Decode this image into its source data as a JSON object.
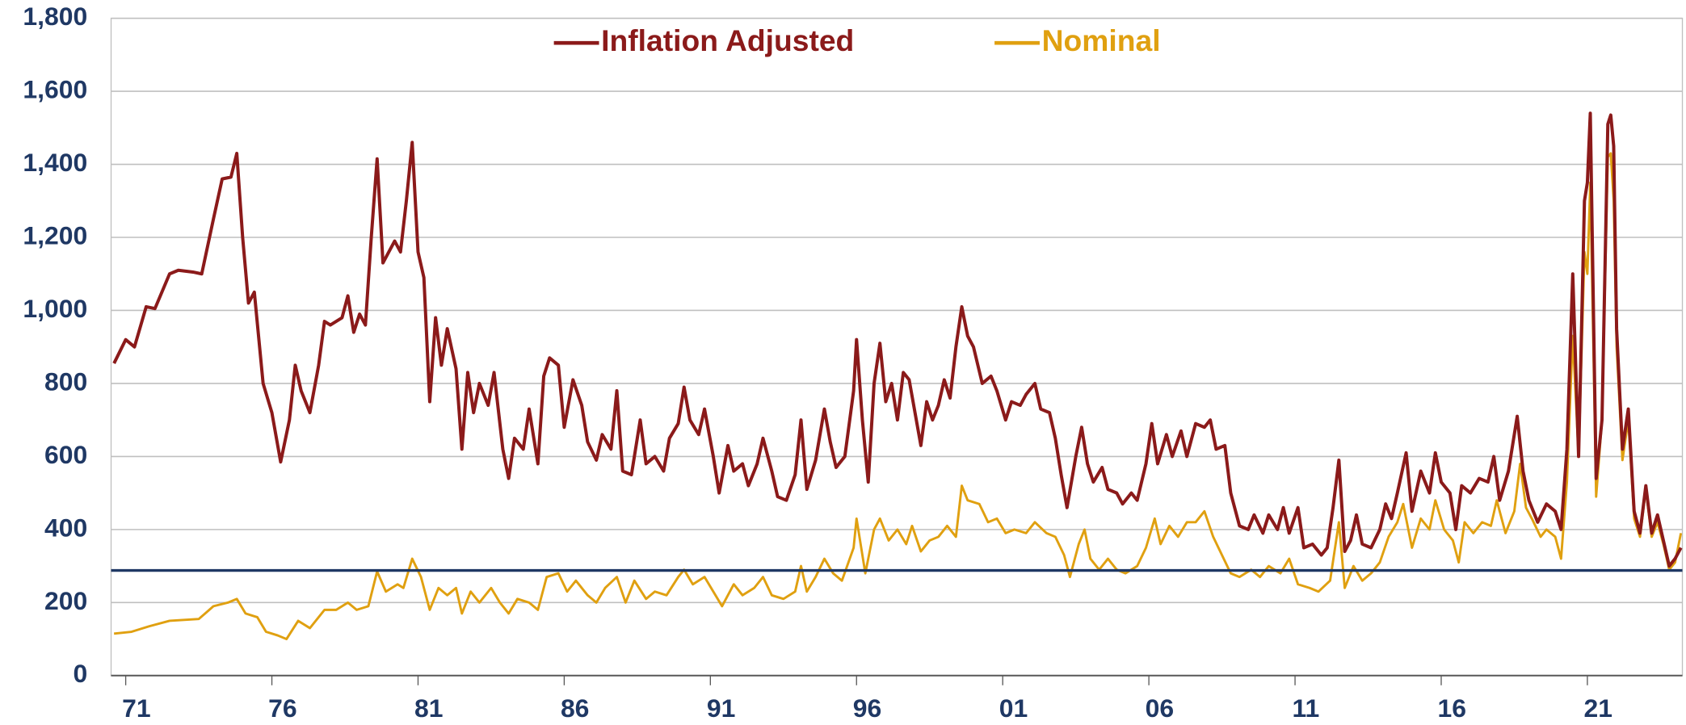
{
  "chart_data": {
    "type": "line",
    "xlim": [
      1970.5,
      2024.25
    ],
    "xticks": [
      {
        "value": 1971,
        "label": "71"
      },
      {
        "value": 1976,
        "label": "76"
      },
      {
        "value": 1981,
        "label": "81"
      },
      {
        "value": 1986,
        "label": "86"
      },
      {
        "value": 1991,
        "label": "91"
      },
      {
        "value": 1996,
        "label": "96"
      },
      {
        "value": 2001,
        "label": "01"
      },
      {
        "value": 2006,
        "label": "06"
      },
      {
        "value": 2011,
        "label": "11"
      },
      {
        "value": 2016,
        "label": "16"
      },
      {
        "value": 2021,
        "label": "21"
      }
    ],
    "ylim": [
      0,
      1800
    ],
    "yticks": [
      0,
      200,
      400,
      600,
      800,
      {
        "value": 1000,
        "label": "1,000"
      },
      {
        "value": 1200,
        "label": "1,200"
      },
      {
        "value": 1400,
        "label": "1,400"
      },
      {
        "value": 1600,
        "label": "1,600"
      },
      {
        "value": 1800,
        "label": "1,800"
      }
    ],
    "grid": true,
    "legend": "top",
    "reference_line": {
      "value": 288,
      "color": "#1f3864"
    },
    "series": [
      {
        "name": "Inflation Adjusted",
        "color": "#8b1a1a",
        "x": [
          1970.6,
          1971.0,
          1971.3,
          1971.7,
          1972.0,
          1972.5,
          1972.8,
          1973.3,
          1973.6,
          1974.0,
          1974.3,
          1974.6,
          1974.8,
          1975.0,
          1975.2,
          1975.4,
          1975.7,
          1976.0,
          1976.3,
          1976.6,
          1976.8,
          1977.0,
          1977.3,
          1977.6,
          1977.8,
          1978.0,
          1978.4,
          1978.6,
          1978.8,
          1979.0,
          1979.2,
          1979.4,
          1979.6,
          1979.8,
          1980.0,
          1980.2,
          1980.4,
          1980.6,
          1980.8,
          1981.0,
          1981.2,
          1981.4,
          1981.6,
          1981.8,
          1982.0,
          1982.3,
          1982.5,
          1982.7,
          1982.9,
          1983.1,
          1983.4,
          1983.6,
          1983.9,
          1984.1,
          1984.3,
          1984.6,
          1984.8,
          1985.1,
          1985.3,
          1985.5,
          1985.8,
          1986.0,
          1986.3,
          1986.6,
          1986.8,
          1987.1,
          1987.3,
          1987.6,
          1987.8,
          1988.0,
          1988.3,
          1988.6,
          1988.8,
          1989.1,
          1989.4,
          1989.6,
          1989.9,
          1990.1,
          1990.3,
          1990.6,
          1990.8,
          1991.1,
          1991.3,
          1991.6,
          1991.8,
          1992.1,
          1992.3,
          1992.6,
          1992.8,
          1993.1,
          1993.3,
          1993.6,
          1993.9,
          1994.1,
          1994.3,
          1994.6,
          1994.9,
          1995.1,
          1995.3,
          1995.6,
          1995.9,
          1996.0,
          1996.2,
          1996.4,
          1996.6,
          1996.8,
          1997.0,
          1997.2,
          1997.4,
          1997.6,
          1997.8,
          1998.0,
          1998.2,
          1998.4,
          1998.6,
          1998.8,
          1999.0,
          1999.2,
          1999.4,
          1999.6,
          1999.8,
          2000.0,
          2000.3,
          2000.6,
          2000.8,
          2001.1,
          2001.3,
          2001.6,
          2001.8,
          2002.1,
          2002.3,
          2002.6,
          2002.8,
          2003.0,
          2003.2,
          2003.5,
          2003.7,
          2003.9,
          2004.1,
          2004.4,
          2004.6,
          2004.9,
          2005.1,
          2005.4,
          2005.6,
          2005.9,
          2006.1,
          2006.3,
          2006.6,
          2006.8,
          2007.1,
          2007.3,
          2007.6,
          2007.9,
          2008.1,
          2008.3,
          2008.6,
          2008.8,
          2009.1,
          2009.4,
          2009.6,
          2009.9,
          2010.1,
          2010.4,
          2010.6,
          2010.8,
          2011.1,
          2011.3,
          2011.6,
          2011.9,
          2012.1,
          2012.3,
          2012.5,
          2012.7,
          2012.9,
          2013.1,
          2013.3,
          2013.6,
          2013.9,
          2014.1,
          2014.3,
          2014.5,
          2014.8,
          2015.0,
          2015.3,
          2015.6,
          2015.8,
          2016.0,
          2016.3,
          2016.5,
          2016.7,
          2017.0,
          2017.3,
          2017.6,
          2017.8,
          2018.0,
          2018.3,
          2018.6,
          2018.8,
          2019.0,
          2019.3,
          2019.6,
          2019.9,
          2020.1,
          2020.3,
          2020.5,
          2020.7,
          2020.9,
          2021.0,
          2021.1,
          2021.3,
          2021.5,
          2021.7,
          2021.8,
          2021.9,
          2022.0,
          2022.2,
          2022.4,
          2022.6,
          2022.8,
          2023.0,
          2023.2,
          2023.4,
          2023.6,
          2023.8,
          2024.0,
          2024.2
        ],
        "values": [
          855,
          920,
          900,
          1010,
          1005,
          1100,
          1110,
          1105,
          1100,
          1250,
          1360,
          1365,
          1430,
          1200,
          1020,
          1050,
          800,
          720,
          585,
          700,
          850,
          780,
          720,
          850,
          970,
          960,
          980,
          1040,
          940,
          990,
          960,
          1200,
          1415,
          1130,
          1160,
          1190,
          1160,
          1300,
          1460,
          1160,
          1090,
          750,
          980,
          850,
          950,
          840,
          620,
          830,
          720,
          800,
          740,
          830,
          620,
          540,
          650,
          620,
          730,
          580,
          820,
          870,
          850,
          680,
          810,
          740,
          640,
          590,
          660,
          620,
          780,
          560,
          550,
          700,
          580,
          600,
          560,
          650,
          690,
          790,
          700,
          660,
          730,
          600,
          500,
          630,
          560,
          580,
          520,
          580,
          650,
          560,
          490,
          480,
          550,
          700,
          510,
          590,
          730,
          640,
          570,
          600,
          780,
          920,
          700,
          530,
          800,
          910,
          750,
          800,
          700,
          830,
          810,
          720,
          630,
          750,
          700,
          740,
          810,
          760,
          900,
          1010,
          930,
          900,
          800,
          820,
          780,
          700,
          750,
          740,
          770,
          800,
          730,
          720,
          650,
          550,
          460,
          600,
          680,
          580,
          530,
          570,
          510,
          500,
          470,
          500,
          480,
          580,
          690,
          580,
          660,
          600,
          670,
          600,
          690,
          680,
          700,
          620,
          630,
          500,
          410,
          400,
          440,
          390,
          440,
          400,
          460,
          390,
          460,
          350,
          360,
          330,
          350,
          460,
          590,
          340,
          370,
          440,
          360,
          350,
          400,
          470,
          430,
          500,
          610,
          450,
          560,
          500,
          610,
          530,
          500,
          400,
          520,
          500,
          540,
          530,
          600,
          480,
          560,
          710,
          560,
          480,
          420,
          470,
          450,
          400,
          620,
          1100,
          600,
          1300,
          1350,
          1540,
          540,
          700,
          1510,
          1535,
          1450,
          950,
          620,
          730,
          450,
          390,
          520,
          390,
          440,
          370,
          300,
          320,
          350
        ]
      },
      {
        "name": "Nominal",
        "color": "#e0a010",
        "x": [
          1970.6,
          1971.2,
          1971.8,
          1972.5,
          1973.5,
          1974.0,
          1974.5,
          1974.8,
          1975.1,
          1975.5,
          1975.8,
          1976.2,
          1976.5,
          1976.9,
          1977.3,
          1977.8,
          1978.2,
          1978.6,
          1978.9,
          1979.3,
          1979.6,
          1979.9,
          1980.3,
          1980.5,
          1980.8,
          1981.1,
          1981.4,
          1981.7,
          1982.0,
          1982.3,
          1982.5,
          1982.8,
          1983.1,
          1983.5,
          1983.8,
          1984.1,
          1984.4,
          1984.8,
          1985.1,
          1985.4,
          1985.8,
          1986.1,
          1986.4,
          1986.8,
          1987.1,
          1987.4,
          1987.8,
          1988.1,
          1988.4,
          1988.8,
          1989.1,
          1989.5,
          1989.9,
          1990.1,
          1990.4,
          1990.8,
          1991.1,
          1991.4,
          1991.8,
          1992.1,
          1992.5,
          1992.8,
          1993.1,
          1993.5,
          1993.9,
          1994.1,
          1994.3,
          1994.6,
          1994.9,
          1995.2,
          1995.5,
          1995.9,
          1996.0,
          1996.3,
          1996.6,
          1996.8,
          1997.1,
          1997.4,
          1997.7,
          1997.9,
          1998.2,
          1998.5,
          1998.8,
          1999.1,
          1999.4,
          1999.6,
          1999.8,
          2000.2,
          2000.5,
          2000.8,
          2001.1,
          2001.4,
          2001.8,
          2002.1,
          2002.5,
          2002.8,
          2003.1,
          2003.3,
          2003.6,
          2003.8,
          2004.0,
          2004.3,
          2004.6,
          2004.9,
          2005.2,
          2005.6,
          2005.9,
          2006.2,
          2006.4,
          2006.7,
          2007.0,
          2007.3,
          2007.6,
          2007.9,
          2008.2,
          2008.5,
          2008.8,
          2009.1,
          2009.5,
          2009.8,
          2010.1,
          2010.5,
          2010.8,
          2011.1,
          2011.5,
          2011.8,
          2012.2,
          2012.5,
          2012.7,
          2013.0,
          2013.3,
          2013.6,
          2013.9,
          2014.2,
          2014.5,
          2014.7,
          2015.0,
          2015.3,
          2015.6,
          2015.8,
          2016.1,
          2016.4,
          2016.6,
          2016.8,
          2017.1,
          2017.4,
          2017.7,
          2017.9,
          2018.2,
          2018.5,
          2018.7,
          2018.9,
          2019.1,
          2019.4,
          2019.6,
          2019.9,
          2020.1,
          2020.3,
          2020.5,
          2020.7,
          2020.9,
          2021.0,
          2021.1,
          2021.3,
          2021.5,
          2021.7,
          2021.8,
          2021.9,
          2022.0,
          2022.2,
          2022.4,
          2022.6,
          2022.8,
          2023.0,
          2023.2,
          2023.4,
          2023.6,
          2023.8,
          2024.0,
          2024.2
        ],
        "values": [
          115,
          120,
          135,
          150,
          155,
          190,
          200,
          210,
          170,
          160,
          120,
          110,
          100,
          150,
          130,
          180,
          180,
          200,
          180,
          190,
          285,
          230,
          250,
          240,
          320,
          270,
          180,
          240,
          220,
          240,
          170,
          230,
          200,
          240,
          200,
          170,
          210,
          200,
          180,
          270,
          280,
          230,
          260,
          220,
          200,
          240,
          270,
          200,
          260,
          210,
          230,
          220,
          270,
          290,
          250,
          270,
          230,
          190,
          250,
          220,
          240,
          270,
          220,
          210,
          230,
          300,
          230,
          270,
          320,
          280,
          260,
          350,
          430,
          280,
          400,
          430,
          370,
          400,
          360,
          410,
          340,
          370,
          380,
          410,
          380,
          520,
          480,
          470,
          420,
          430,
          390,
          400,
          390,
          420,
          390,
          380,
          330,
          270,
          360,
          400,
          320,
          290,
          320,
          290,
          280,
          300,
          350,
          430,
          360,
          410,
          380,
          420,
          420,
          450,
          380,
          330,
          280,
          270,
          290,
          270,
          300,
          280,
          320,
          250,
          240,
          230,
          260,
          420,
          240,
          300,
          260,
          280,
          310,
          380,
          420,
          470,
          350,
          430,
          400,
          480,
          400,
          370,
          310,
          420,
          390,
          420,
          410,
          480,
          390,
          450,
          580,
          460,
          430,
          380,
          400,
          380,
          320,
          530,
          930,
          600,
          1160,
          1100,
          1350,
          490,
          700,
          1420,
          1430,
          1300,
          900,
          590,
          700,
          430,
          380,
          510,
          380,
          420,
          360,
          290,
          310,
          390
        ]
      }
    ]
  }
}
